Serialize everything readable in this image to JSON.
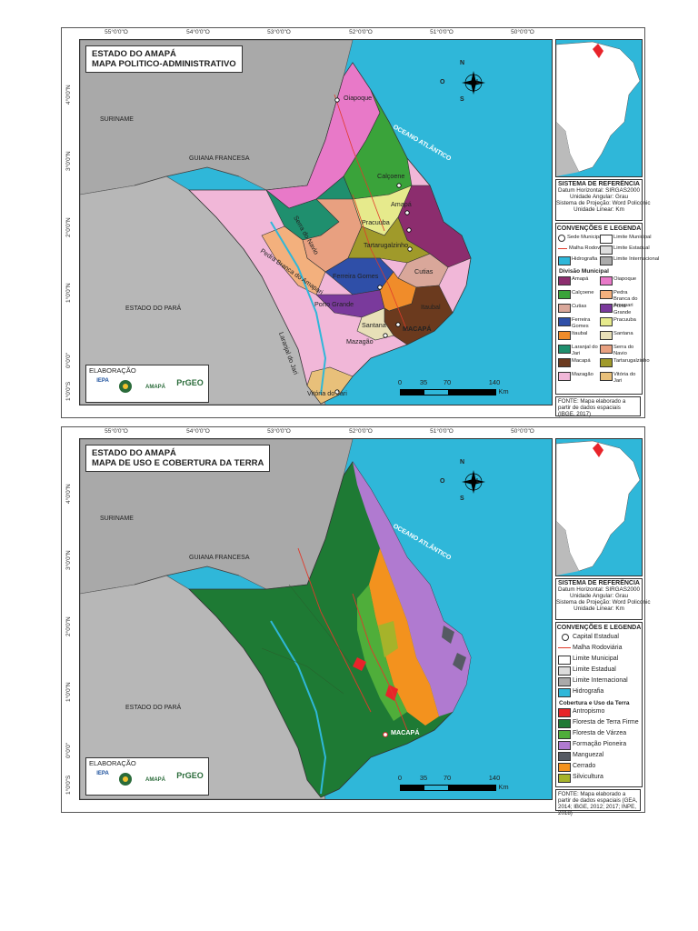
{
  "maps": [
    {
      "title_line1": "ESTADO DO AMAPÁ",
      "title_line2": "MAPA POLITICO-ADMINISTRATIVO",
      "longitudes": [
        "55°0'0\"O",
        "54°0'0\"O",
        "53°0'0\"O",
        "52°0'0\"O",
        "51°0'0\"O",
        "50°0'0\"O"
      ],
      "latitudes": [
        "4°0'0\"N",
        "3°0'0\"N",
        "2°0'0\"N",
        "1°0'0\"N",
        "0°0'0\"",
        "1°0'0\"S"
      ],
      "labels": {
        "suriname": "SURINAME",
        "guiana": "GUIANA FRANCESA",
        "para": "ESTADO DO PARÁ",
        "ocean": "OCEANO ATLÂNTICO",
        "oiapoque": "Oiapoque",
        "calcoene": "Calçoene",
        "amapa": "Amapá",
        "pracuuba": "Pracuuba",
        "tartarugalzinho": "Tartarugalzinho",
        "cutias": "Cutias",
        "ferreira_gomes": "Ferreira Gomes",
        "porto_grande": "Porto Grande",
        "itaubal": "Itaubal",
        "santana": "Santana",
        "macapa": "MACAPÁ",
        "mazagao": "Mazagão",
        "laranjal": "Laranjal do Jari",
        "vitoria": "Vitória do Jari",
        "serra_navio": "Serra do Navio",
        "pedra_branca": "Pedra Branca do Amapari"
      },
      "elaboracao": "ELABORAÇÃO",
      "scale": {
        "n0": "0",
        "n1": "35",
        "n2": "70",
        "n3": "140",
        "unit": "Km"
      },
      "compass": {
        "n": "N",
        "s": "S",
        "l": "L",
        "o": "O"
      },
      "ref_title": "SISTEMA DE REFERÊNCIA",
      "ref_lines": [
        "Datum Horizontal: SIRGAS2000",
        "Unidade Angular: Grau",
        "Sistema de Projeção: Word Policonic",
        "Unidade Linear: Km"
      ],
      "leg_title": "CONVENÇÕES E LEGENDA",
      "conv": [
        {
          "label": "Sede Municipal",
          "color": "#ffffff"
        },
        {
          "label": "Limite Municipal",
          "color": "#ffffff"
        },
        {
          "label": "Malha Rodoviária",
          "color": "#e03a2a"
        },
        {
          "label": "Limite Estadual",
          "color": "#dddddd"
        },
        {
          "label": "Hidrografia",
          "color": "#2fb7d9"
        },
        {
          "label": "Limite Internacional",
          "color": "#aaaaaa"
        }
      ],
      "div_title": "Divisão Municipal",
      "municipios": [
        {
          "label": "Amapá",
          "color": "#8c2d6e"
        },
        {
          "label": "Oiapoque",
          "color": "#e879c8"
        },
        {
          "label": "Calçoene",
          "color": "#3aa33a"
        },
        {
          "label": "Pedra Branca do Amapari",
          "color": "#f3b07d"
        },
        {
          "label": "Cutias",
          "color": "#d9a79a"
        },
        {
          "label": "Porto Grande",
          "color": "#7a3a9c"
        },
        {
          "label": "Ferreira Gomes",
          "color": "#2f4fa8"
        },
        {
          "label": "Pracuuba",
          "color": "#e6ea8c"
        },
        {
          "label": "Itaubal",
          "color": "#f08c2a"
        },
        {
          "label": "Santana",
          "color": "#e8e0b8"
        },
        {
          "label": "Laranjal do Jari",
          "color": "#1f8f6e"
        },
        {
          "label": "Serra do Navio",
          "color": "#e8a080"
        },
        {
          "label": "Macapá",
          "color": "#6b3a1e"
        },
        {
          "label": "Tartarugalzinho",
          "color": "#a09a2a"
        },
        {
          "label": "Mazagão",
          "color": "#f1b7d8"
        },
        {
          "label": "Vitória do Jari",
          "color": "#e8c07a"
        }
      ],
      "fonte": "FONTE: Mapa elaborado a partir de dados espaciais (IBGE, 2017)"
    },
    {
      "title_line1": "ESTADO DO AMAPÁ",
      "title_line2": "MAPA DE USO E COBERTURA DA TERRA",
      "longitudes": [
        "55°0'0\"O",
        "54°0'0\"O",
        "53°0'0\"O",
        "52°0'0\"O",
        "51°0'0\"O",
        "50°0'0\"O"
      ],
      "latitudes": [
        "4°0'0\"N",
        "3°0'0\"N",
        "2°0'0\"N",
        "1°0'0\"N",
        "0°0'0\"",
        "1°0'0\"S"
      ],
      "labels": {
        "suriname": "SURINAME",
        "guiana": "GUIANA FRANCESA",
        "para": "ESTADO DO PARÁ",
        "ocean": "OCEANO ATLÂNTICO",
        "macapa": "MACAPÁ"
      },
      "elaboracao": "ELABORAÇÃO",
      "scale": {
        "n0": "0",
        "n1": "35",
        "n2": "70",
        "n3": "140",
        "unit": "Km"
      },
      "compass": {
        "n": "N",
        "s": "S",
        "l": "L",
        "o": "O"
      },
      "ref_title": "SISTEMA DE REFERÊNCIA",
      "ref_lines": [
        "Datum Horizontal: SIRGAS2000",
        "Unidade Angular: Grau",
        "Sistema de Projeção: Word Policonic",
        "Unidade Linear: Km"
      ],
      "leg_title": "CONVENÇÕES E LEGENDA",
      "conv": [
        {
          "label": "Capital Estadual",
          "color": "#ffffff"
        },
        {
          "label": "Malha Rodoviária",
          "color": "#e03a2a"
        },
        {
          "label": "Limite Municipal",
          "color": "#ffffff"
        },
        {
          "label": "Limite Estadual",
          "color": "#dddddd"
        },
        {
          "label": "Limite Internacional",
          "color": "#aaaaaa"
        },
        {
          "label": "Hidrografia",
          "color": "#2fb7d9"
        }
      ],
      "cov_title": "Cobertura e Uso da Terra",
      "cobertura": [
        {
          "label": "Antropismo",
          "color": "#e8242a"
        },
        {
          "label": "Floresta de Terra Firme",
          "color": "#1e7a34"
        },
        {
          "label": "Floresta de Várzea",
          "color": "#4fae3a"
        },
        {
          "label": "Formação Pioneira",
          "color": "#b07ad0"
        },
        {
          "label": "Manguezal",
          "color": "#555a63"
        },
        {
          "label": "Cerrado",
          "color": "#f3921e"
        },
        {
          "label": "Silvicultura",
          "color": "#a6b32a"
        }
      ],
      "fonte": "FONTE: Mapa elaborado a partir de dados espaciais (GEA, 2014; IBGE, 2012; 2017; INPE, 2018)"
    }
  ],
  "logos": [
    "IEPA",
    "AMAPÁ",
    "PrGEO"
  ]
}
